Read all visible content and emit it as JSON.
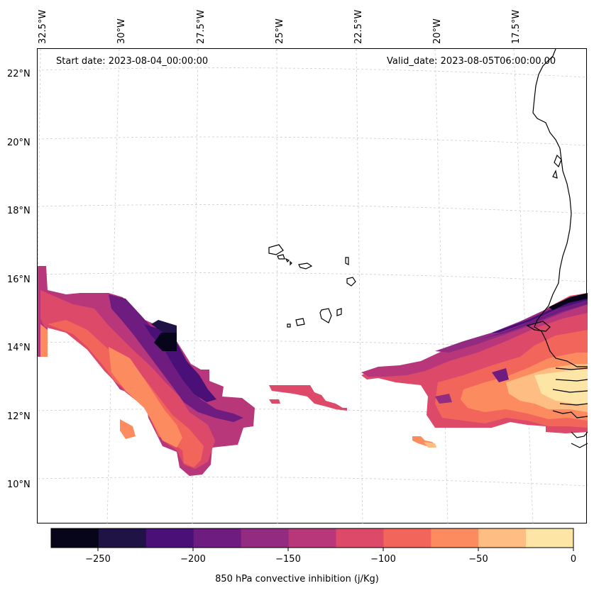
{
  "map": {
    "start_date": "Start date: 2023-08-04_00:00:00",
    "valid_date": "Valid_date: 2023-08-05T06:00:00.00",
    "lon_labels": [
      "32.5°W",
      "30°W",
      "27.5°W",
      "25°W",
      "22.5°W",
      "20°W",
      "17.5°W"
    ],
    "lat_labels": [
      "22°N",
      "20°N",
      "18°N",
      "16°N",
      "14°N",
      "12°N",
      "10°N"
    ]
  },
  "colorbar": {
    "label": "850 hPa convective inhibition (j/Kg)",
    "ticks": [
      "−250",
      "−200",
      "−150",
      "−100",
      "−50",
      "0"
    ],
    "colors": [
      "#06051a",
      "#1f1244",
      "#4a1078",
      "#6f1c81",
      "#932b80",
      "#b8367a",
      "#dd4a69",
      "#f2655b",
      "#fc8b5f",
      "#febd82",
      "#fde6a5"
    ]
  }
}
